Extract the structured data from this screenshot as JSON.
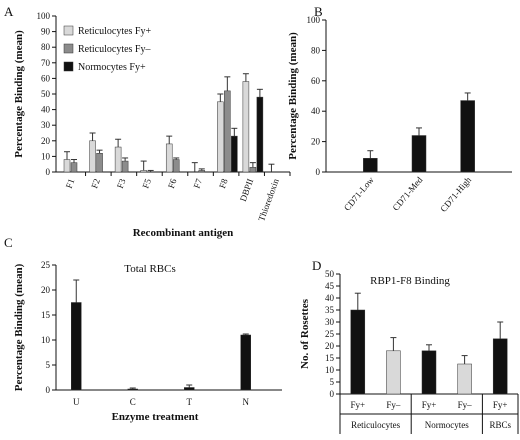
{
  "colors": {
    "light": "#d9d9d9",
    "gray": "#8c8c8c",
    "black": "#111111"
  },
  "chart_data": [
    {
      "panel": "A",
      "type": "bar",
      "ylabel": "Percentage Binding (mean)",
      "xlabel": "Recombinant antigen",
      "ylim": [
        0,
        100
      ],
      "yticks": [
        0,
        10,
        20,
        30,
        40,
        50,
        60,
        70,
        80,
        90,
        100
      ],
      "categories": [
        "F1",
        "F2",
        "F3",
        "F5",
        "F6",
        "F7",
        "F8",
        "DBPII",
        "Thioredoxin"
      ],
      "series": [
        {
          "name": "Reticulocytes Fy+",
          "color": "light",
          "values": [
            8,
            20,
            16,
            1,
            18,
            0,
            45,
            58,
            0
          ],
          "errors": [
            5,
            5,
            5,
            6,
            5,
            6,
            5,
            5,
            5
          ]
        },
        {
          "name": "Reticulocytes Fy–",
          "color": "gray",
          "values": [
            6,
            12,
            7,
            0,
            8,
            1,
            52,
            3,
            0
          ],
          "errors": [
            2,
            2,
            2,
            1,
            1,
            1,
            9,
            3,
            0
          ]
        },
        {
          "name": "Normocytes Fy+",
          "color": "black",
          "values": [
            0,
            0,
            0,
            0,
            0,
            0,
            23,
            48,
            0
          ],
          "errors": [
            0,
            0,
            0,
            0,
            0,
            0,
            5,
            5,
            0
          ]
        }
      ]
    },
    {
      "panel": "B",
      "type": "bar",
      "ylabel": "Percentage Binding (mean)",
      "ylim": [
        0,
        100
      ],
      "yticks": [
        0,
        20,
        40,
        60,
        80,
        100
      ],
      "categories": [
        "CD71-Low",
        "CD71-Med",
        "CD71-High"
      ],
      "series": [
        {
          "color": "black",
          "values": [
            9,
            24,
            47
          ],
          "errors": [
            5,
            5,
            5
          ]
        }
      ]
    },
    {
      "panel": "C",
      "type": "bar",
      "title": "Total RBCs",
      "ylabel": "Percentage Binding (mean)",
      "xlabel": "Enzyme treatment",
      "ylim": [
        0,
        25
      ],
      "yticks": [
        0,
        5,
        10,
        15,
        20,
        25
      ],
      "categories": [
        "U",
        "C",
        "T",
        "N"
      ],
      "series": [
        {
          "color": "black",
          "values": [
            17.5,
            0.2,
            0.5,
            11
          ],
          "errors": [
            4.5,
            0.2,
            0.5,
            0.2
          ]
        }
      ]
    },
    {
      "panel": "D",
      "type": "bar",
      "title": "RBP1-F8 Binding",
      "ylabel": "No. of Rosettes",
      "ylim": [
        0,
        50
      ],
      "yticks": [
        0,
        5,
        10,
        15,
        20,
        25,
        30,
        35,
        40,
        45,
        50
      ],
      "categories": [
        "Fy+",
        "Fy–",
        "Fy+",
        "Fy–",
        "Fy+"
      ],
      "groups": [
        "Reticulocytes",
        "Normocytes",
        "RBCs"
      ],
      "series": [
        {
          "values": [
            35,
            18,
            18,
            12.5,
            23
          ],
          "errors": [
            7,
            5.5,
            2.5,
            3.5,
            7
          ],
          "colors": [
            "black",
            "light",
            "black",
            "light",
            "black"
          ]
        }
      ]
    }
  ]
}
